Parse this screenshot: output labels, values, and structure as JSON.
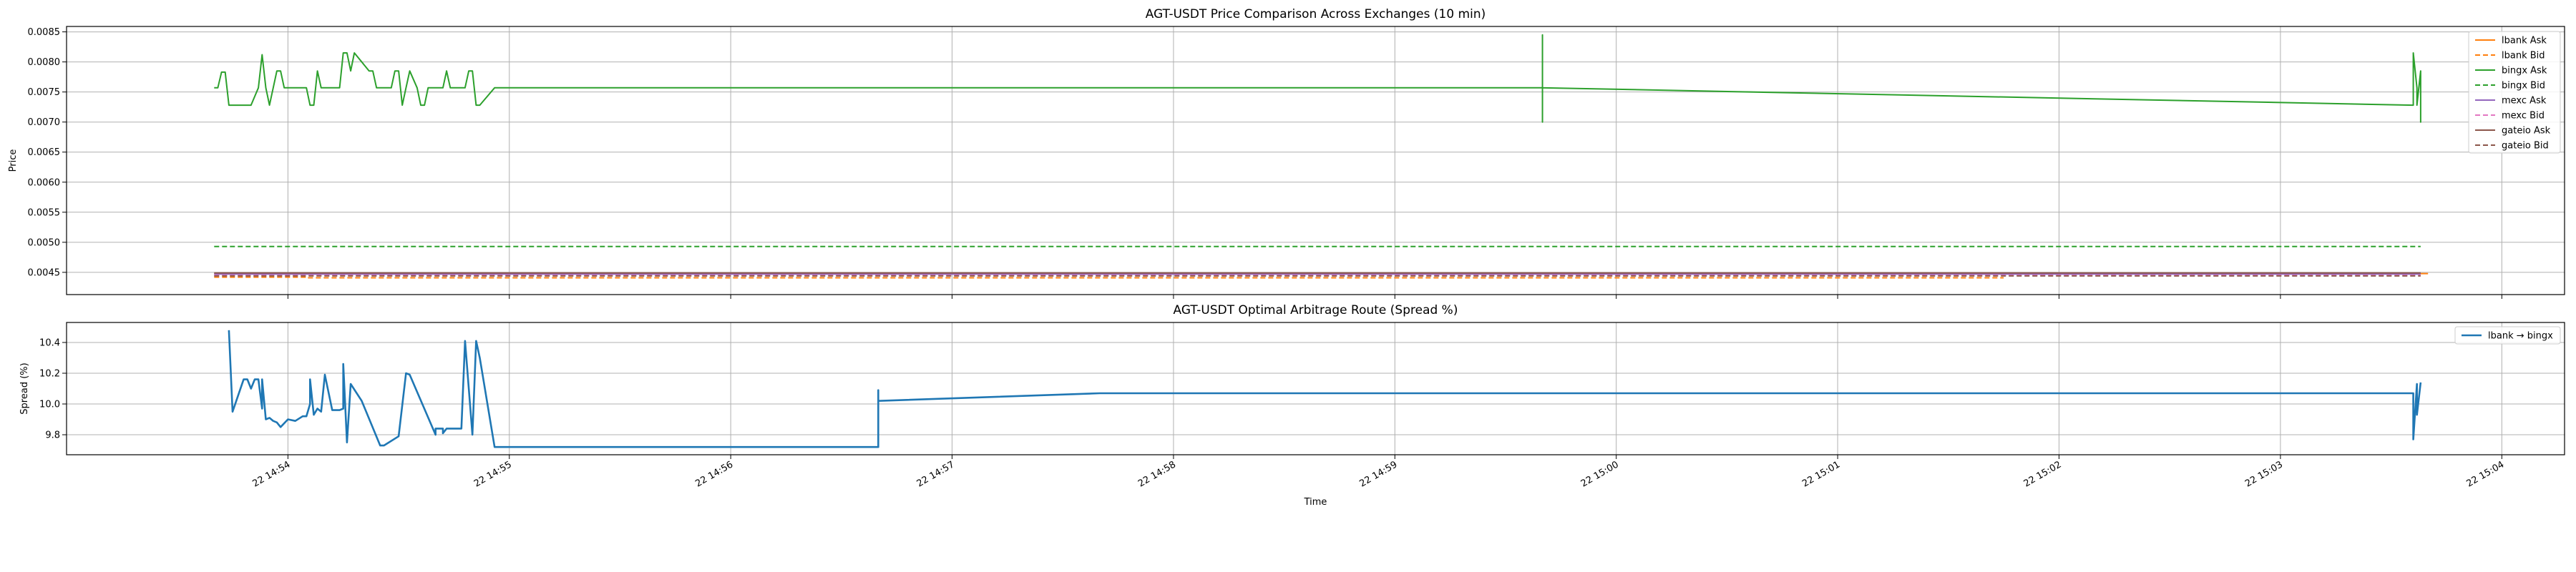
{
  "chart_data": [
    {
      "type": "line",
      "title": "AGT-USDT Price Comparison Across Exchanges (10 min)",
      "xlabel": "",
      "ylabel": "Price",
      "xlim": [
        "14:53:00",
        "15:04:17"
      ],
      "ylim": [
        0.00413,
        0.00859
      ],
      "yticks": [
        0.0045,
        0.005,
        0.0055,
        0.006,
        0.0065,
        0.007,
        0.0075,
        0.008,
        0.0085
      ],
      "ytick_labels": [
        "0.0045",
        "0.0050",
        "0.0055",
        "0.0060",
        "0.0065",
        "0.0070",
        "0.0075",
        "0.0080",
        "0.0085"
      ],
      "grid": true,
      "legend_position": "top-right",
      "series": [
        {
          "name": "lbank Ask",
          "color": "#ff7f0e",
          "dash": "solid",
          "x": [
            "14:53:40",
            "14:55:00",
            "14:58:00",
            "15:01:00",
            "15:03:40"
          ],
          "y": [
            0.00448,
            0.00448,
            0.00448,
            0.00448,
            0.00448
          ]
        },
        {
          "name": "lbank Bid",
          "color": "#ff7f0e",
          "dash": "dashed",
          "x": [
            "14:53:40",
            "14:54:05",
            "14:54:05",
            "14:56:00",
            "15:00:00",
            "15:01:45"
          ],
          "y": [
            0.00442,
            0.00442,
            0.00441,
            0.00441,
            0.00441,
            0.00441
          ]
        },
        {
          "name": "bingx Ask",
          "color": "#2ca02c",
          "dash": "solid",
          "x": [
            "14:53:40",
            "14:53:41",
            "14:53:42",
            "14:53:43",
            "14:53:44",
            "14:53:45",
            "14:53:47",
            "14:53:50",
            "14:53:52",
            "14:53:53",
            "14:53:54",
            "14:53:55",
            "14:53:57",
            "14:53:58",
            "14:53:59",
            "14:54:00",
            "14:54:02",
            "14:54:05",
            "14:54:06",
            "14:54:07",
            "14:54:08",
            "14:54:09",
            "14:54:10",
            "14:54:12",
            "14:54:14",
            "14:54:15",
            "14:54:16",
            "14:54:17",
            "14:54:18",
            "14:54:22",
            "14:54:23",
            "14:54:24",
            "14:54:25",
            "14:54:26",
            "14:54:28",
            "14:54:29",
            "14:54:30",
            "14:54:31",
            "14:54:32",
            "14:54:33",
            "14:54:35",
            "14:54:36",
            "14:54:37",
            "14:54:38",
            "14:54:40",
            "14:54:42",
            "14:54:43",
            "14:54:44",
            "14:54:45",
            "14:54:46",
            "14:54:47",
            "14:54:48",
            "14:54:49",
            "14:54:50",
            "14:54:51",
            "14:54:52",
            "14:54:56",
            "14:59:40",
            "14:59:40",
            "14:59:40",
            "14:59:40",
            "15:03:36",
            "15:03:36",
            "15:03:37",
            "15:03:37",
            "15:03:38",
            "15:03:38",
            "15:03:38"
          ],
          "y": [
            0.00757,
            0.00757,
            0.00783,
            0.00783,
            0.00728,
            0.00728,
            0.00728,
            0.00728,
            0.00757,
            0.00812,
            0.00757,
            0.00728,
            0.00785,
            0.00785,
            0.00757,
            0.00757,
            0.00757,
            0.00757,
            0.00728,
            0.00728,
            0.00785,
            0.00757,
            0.00757,
            0.00757,
            0.00757,
            0.00815,
            0.00815,
            0.00785,
            0.00815,
            0.00785,
            0.00785,
            0.00757,
            0.00757,
            0.00757,
            0.00757,
            0.00785,
            0.00785,
            0.00728,
            0.00757,
            0.00785,
            0.00757,
            0.00728,
            0.00728,
            0.00757,
            0.00757,
            0.00757,
            0.00785,
            0.00757,
            0.00757,
            0.00757,
            0.00757,
            0.00757,
            0.00785,
            0.00785,
            0.00728,
            0.00728,
            0.00757,
            0.00757,
            0.00845,
            0.007,
            0.00757,
            0.00728,
            0.00815,
            0.00757,
            0.00728,
            0.00785,
            0.007,
            0.00728
          ]
        },
        {
          "name": "bingx Bid",
          "color": "#2ca02c",
          "dash": "dashed",
          "x": [
            "14:53:40",
            "15:03:38"
          ],
          "y": [
            0.00493,
            0.00493
          ]
        },
        {
          "name": "mexc Ask",
          "color": "#9467bd",
          "dash": "solid",
          "x": [
            "14:53:40",
            "15:03:38"
          ],
          "y": [
            0.00447,
            0.00447
          ]
        },
        {
          "name": "mexc Bid",
          "color": "#e377c2",
          "dash": "dashed",
          "x": [
            "14:53:40",
            "15:03:38"
          ],
          "y": [
            0.00445,
            0.00445
          ]
        },
        {
          "name": "gateio Ask",
          "color": "#8c564b",
          "dash": "solid",
          "x": [
            "14:53:40",
            "15:03:38"
          ],
          "y": [
            0.00449,
            0.00449
          ]
        },
        {
          "name": "gateio Bid",
          "color": "#8c564b",
          "dash": "dashed",
          "x": [
            "14:53:40",
            "15:03:38"
          ],
          "y": [
            0.00444,
            0.00444
          ]
        }
      ]
    },
    {
      "type": "line",
      "title": "AGT-USDT Optimal Arbitrage Route (Spread %)",
      "xlabel": "Time",
      "ylabel": "Spread (%)",
      "xlim": [
        "14:53:00",
        "15:04:17"
      ],
      "ylim": [
        9.67,
        10.53
      ],
      "yticks": [
        9.8,
        10.0,
        10.2,
        10.4
      ],
      "ytick_labels": [
        "9.8",
        "10.0",
        "10.2",
        "10.4"
      ],
      "xticks": [
        "14:54:00",
        "14:55:00",
        "14:56:00",
        "14:57:00",
        "14:58:00",
        "14:59:00",
        "15:00:00",
        "15:01:00",
        "15:02:00",
        "15:03:00",
        "15:04:00"
      ],
      "xtick_labels": [
        "22 14:54",
        "22 14:55",
        "22 14:56",
        "22 14:57",
        "22 14:58",
        "22 14:59",
        "22 15:00",
        "22 15:01",
        "22 15:02",
        "22 15:03",
        "22 15:04"
      ],
      "grid": true,
      "legend_position": "top-right",
      "series": [
        {
          "name": "lbank → bingx",
          "color": "#1f77b4",
          "dash": "solid",
          "x": [
            "14:53:44",
            "14:53:45",
            "14:53:46",
            "14:53:48",
            "14:53:49",
            "14:53:50",
            "14:53:51",
            "14:53:52",
            "14:53:53",
            "14:53:53",
            "14:53:54",
            "14:53:55",
            "14:53:56",
            "14:53:57",
            "14:53:58",
            "14:54:00",
            "14:54:02",
            "14:54:04",
            "14:54:05",
            "14:54:06",
            "14:54:06",
            "14:54:07",
            "14:54:08",
            "14:54:09",
            "14:54:10",
            "14:54:12",
            "14:54:14",
            "14:54:15",
            "14:54:15",
            "14:54:16",
            "14:54:17",
            "14:54:20",
            "14:54:25",
            "14:54:26",
            "14:54:30",
            "14:54:32",
            "14:54:33",
            "14:54:40",
            "14:54:40",
            "14:54:41",
            "14:54:42",
            "14:54:42",
            "14:54:43",
            "14:54:47",
            "14:54:48",
            "14:54:50",
            "14:54:51",
            "14:54:52",
            "14:54:56",
            "14:56:40",
            "14:56:40",
            "14:56:40",
            "14:57:40",
            "15:03:36",
            "15:03:36",
            "15:03:37",
            "15:03:37",
            "15:03:38"
          ],
          "y": [
            10.48,
            9.95,
            10.02,
            10.16,
            10.16,
            10.1,
            10.16,
            10.16,
            9.97,
            10.16,
            9.9,
            9.91,
            9.89,
            9.88,
            9.85,
            9.9,
            9.89,
            9.92,
            9.92,
            10.0,
            10.16,
            9.93,
            9.97,
            9.95,
            10.19,
            9.96,
            9.96,
            9.97,
            10.26,
            9.75,
            10.13,
            10.02,
            9.73,
            9.73,
            9.79,
            10.2,
            10.19,
            9.8,
            9.84,
            9.84,
            9.84,
            9.81,
            9.84,
            9.84,
            10.41,
            9.8,
            10.41,
            10.3,
            9.72,
            9.72,
            10.09,
            10.02,
            10.07,
            10.07,
            9.77,
            10.13,
            9.93,
            10.14
          ]
        }
      ]
    }
  ]
}
